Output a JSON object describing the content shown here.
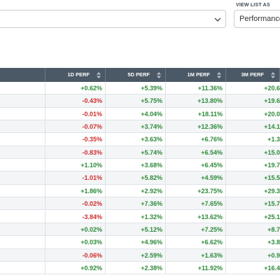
{
  "header": {
    "view_label": "VIEW LIST AS",
    "view_value": "Performance"
  },
  "table": {
    "columns": [
      "1D PERF",
      "5D PERF",
      "1M PERF",
      "3M PERF"
    ],
    "rows": [
      [
        "+0.62%",
        "+5.39%",
        "+11.36%",
        "+20.6"
      ],
      [
        "-0.43%",
        "+5.75%",
        "+13.80%",
        "+19.6"
      ],
      [
        "-0.01%",
        "+4.04%",
        "+18.11%",
        "+20.0"
      ],
      [
        "-0.07%",
        "+3.74%",
        "+12.36%",
        "+14.1"
      ],
      [
        "-0.35%",
        "+3.63%",
        "+6.76%",
        "+1.3"
      ],
      [
        "-0.83%",
        "+5.74%",
        "+6.54%",
        "+15.0"
      ],
      [
        "+1.10%",
        "+3.68%",
        "+6.45%",
        "+19.7"
      ],
      [
        "-1.01%",
        "+5.82%",
        "+4.59%",
        "+15.5"
      ],
      [
        "+1.86%",
        "+2.92%",
        "+23.75%",
        "+29.3"
      ],
      [
        "-0.02%",
        "+7.36%",
        "+7.65%",
        "+15.7"
      ],
      [
        "-3.84%",
        "+1.32%",
        "+13.62%",
        "+25.1"
      ],
      [
        "+0.02%",
        "+5.12%",
        "+7.25%",
        "+8.7"
      ],
      [
        "+0.03%",
        "+4.96%",
        "+6.62%",
        "+3.8"
      ],
      [
        "-0.06%",
        "+2.59%",
        "+1.63%",
        "+0.9"
      ],
      [
        "+0.92%",
        "+2.38%",
        "+11.92%",
        "+16.4"
      ]
    ]
  }
}
